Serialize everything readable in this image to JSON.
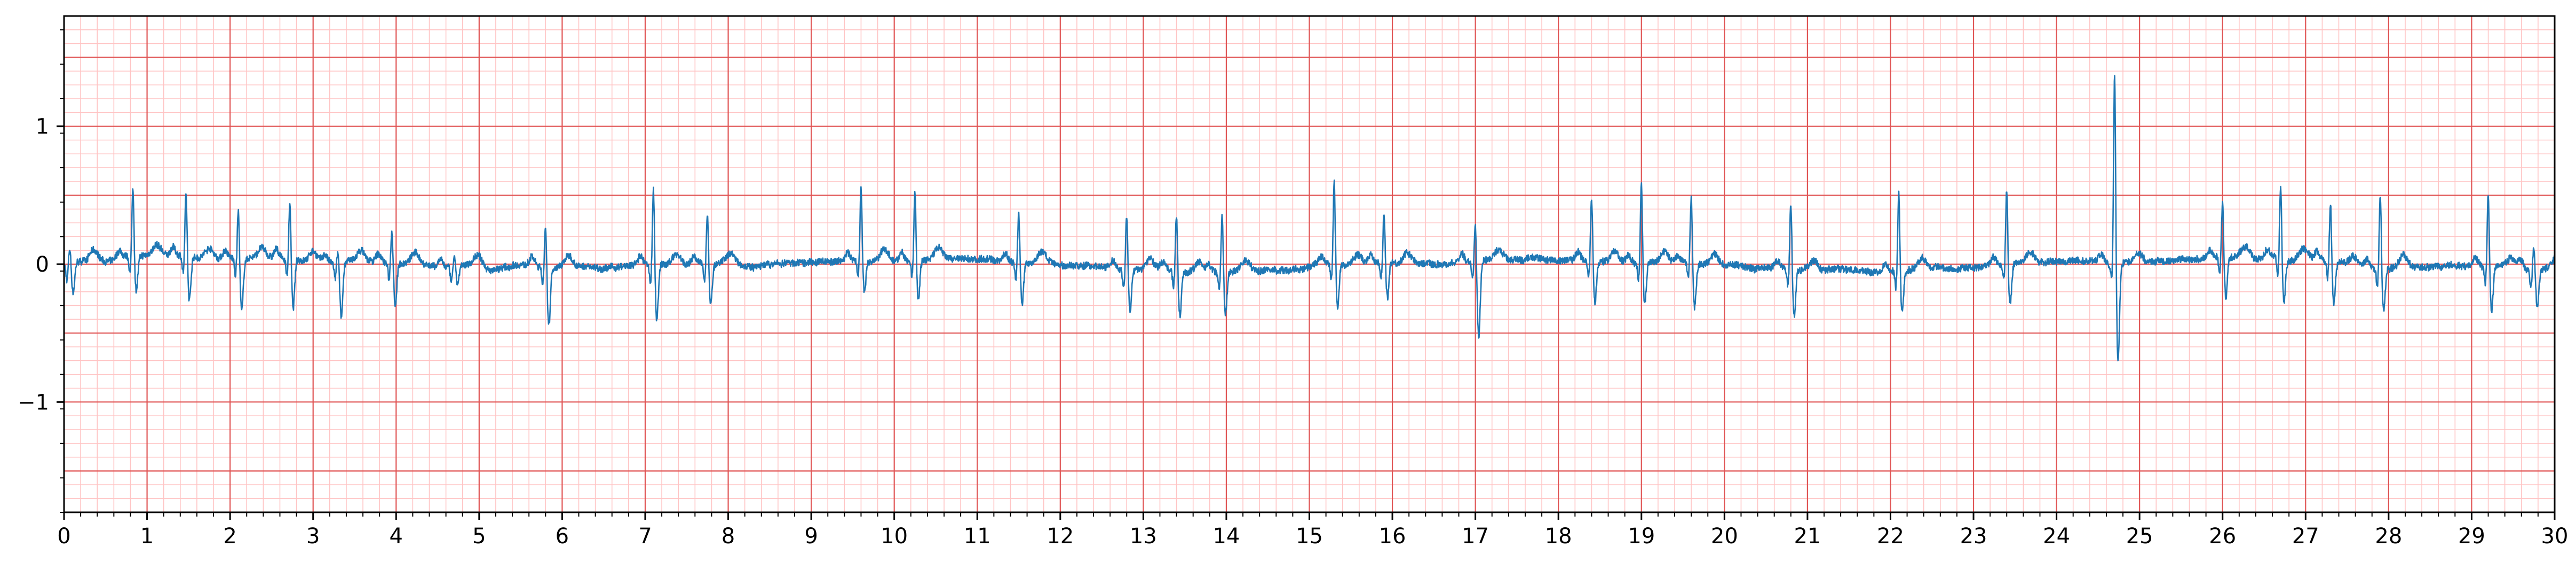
{
  "chart_data": {
    "type": "line",
    "title": "",
    "xlabel": "",
    "ylabel": "",
    "xlim": [
      0,
      30
    ],
    "ylim": [
      -1.8,
      1.8
    ],
    "x_ticks": [
      "0",
      "1",
      "2",
      "3",
      "4",
      "5",
      "6",
      "7",
      "8",
      "9",
      "10",
      "11",
      "12",
      "13",
      "14",
      "15",
      "16",
      "17",
      "18",
      "19",
      "20",
      "21",
      "22",
      "23",
      "24",
      "25",
      "26",
      "27",
      "28",
      "29",
      "30"
    ],
    "y_ticks": [
      {
        "value": 1,
        "label": "1"
      },
      {
        "value": 0,
        "label": "0"
      },
      {
        "value": -1,
        "label": "−1"
      }
    ],
    "grid": {
      "major_x": 1,
      "minor_x": 0.2,
      "major_y": 0.5,
      "minor_y": 0.1,
      "major_color": "#e05555",
      "minor_color": "#ffc4c4"
    },
    "series": [
      {
        "color": "#1f77b4",
        "beats": [
          {
            "t": 0.07,
            "r": 0.12,
            "s": -0.22
          },
          {
            "t": 0.83,
            "r": 0.52,
            "s": -0.24
          },
          {
            "t": 1.47,
            "r": 0.47,
            "s": -0.33
          },
          {
            "t": 2.1,
            "r": 0.38,
            "s": -0.38
          },
          {
            "t": 2.72,
            "r": 0.43,
            "s": -0.35
          },
          {
            "t": 3.3,
            "r": 0.1,
            "s": -0.4
          },
          {
            "t": 3.95,
            "r": 0.25,
            "s": -0.3
          },
          {
            "t": 4.7,
            "r": 0.08,
            "s": -0.12
          },
          {
            "t": 5.8,
            "r": 0.3,
            "s": -0.42
          },
          {
            "t": 7.1,
            "r": 0.58,
            "s": -0.4
          },
          {
            "t": 7.75,
            "r": 0.38,
            "s": -0.3
          },
          {
            "t": 9.6,
            "r": 0.56,
            "s": -0.22
          },
          {
            "t": 10.25,
            "r": 0.52,
            "s": -0.28
          },
          {
            "t": 11.5,
            "r": 0.37,
            "s": -0.3
          },
          {
            "t": 12.8,
            "r": 0.42,
            "s": -0.3
          },
          {
            "t": 13.4,
            "r": 0.42,
            "s": -0.32
          },
          {
            "t": 13.95,
            "r": 0.43,
            "s": -0.3
          },
          {
            "t": 15.3,
            "r": 0.62,
            "s": -0.3
          },
          {
            "t": 15.9,
            "r": 0.38,
            "s": -0.25
          },
          {
            "t": 17.0,
            "r": 0.3,
            "s": -0.55
          },
          {
            "t": 18.4,
            "r": 0.48,
            "s": -0.3
          },
          {
            "t": 19.0,
            "r": 0.58,
            "s": -0.3
          },
          {
            "t": 19.6,
            "r": 0.5,
            "s": -0.3
          },
          {
            "t": 20.8,
            "r": 0.5,
            "s": -0.35
          },
          {
            "t": 22.1,
            "r": 0.58,
            "s": -0.3
          },
          {
            "t": 23.4,
            "r": 0.57,
            "s": -0.3
          },
          {
            "t": 24.7,
            "r": 1.42,
            "s": -0.7
          },
          {
            "t": 26.0,
            "r": 0.42,
            "s": -0.3
          },
          {
            "t": 26.7,
            "r": 0.53,
            "s": -0.3
          },
          {
            "t": 27.3,
            "r": 0.45,
            "s": -0.3
          },
          {
            "t": 27.9,
            "r": 0.58,
            "s": -0.3
          },
          {
            "t": 29.2,
            "r": 0.55,
            "s": -0.32
          },
          {
            "t": 29.75,
            "r": 0.2,
            "s": -0.25
          }
        ]
      }
    ]
  }
}
